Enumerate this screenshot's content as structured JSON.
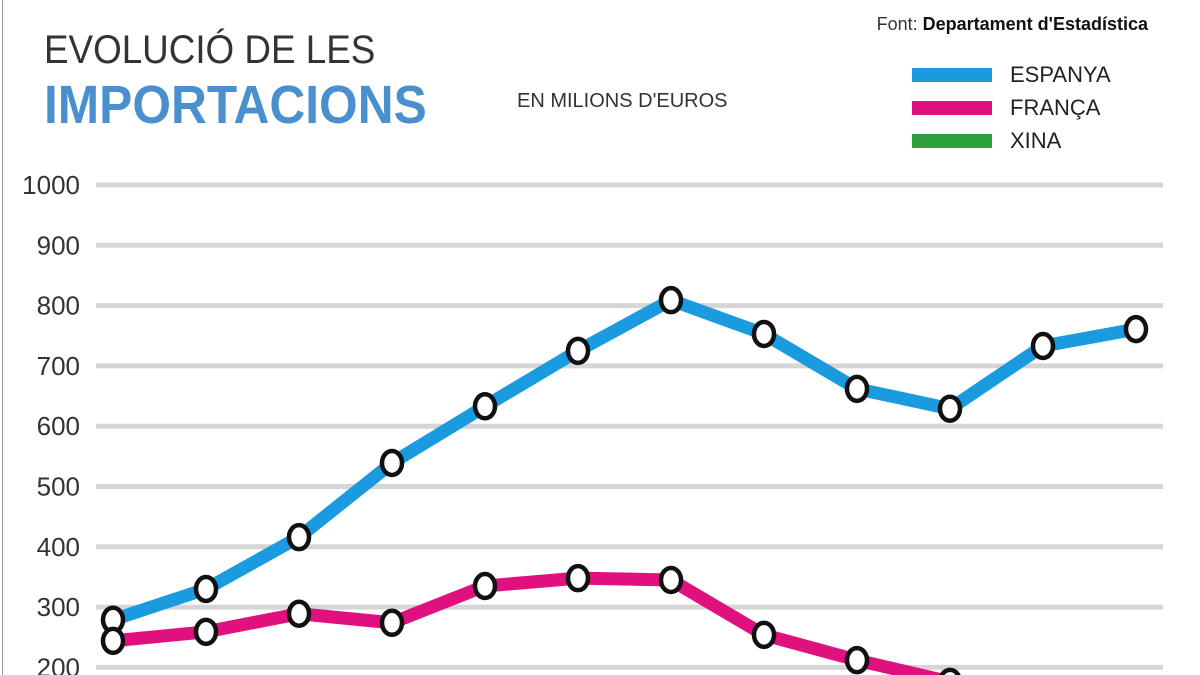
{
  "title_line1": "EVOLUCIÓ DE LES",
  "title_line2": "IMPORTACIONS",
  "unit": "EN MILIONS D'EUROS",
  "source_prefix": "Font:",
  "source_name": "Departament d'Estadística",
  "chart_data": {
    "type": "line",
    "title": "EVOLUCIÓ DE LES IMPORTACIONS",
    "subtitle": "EN MILIONS D'EUROS",
    "ylim": [
      200,
      1000
    ],
    "yticks": [
      1000,
      900,
      800,
      700,
      600,
      500,
      400,
      300,
      200
    ],
    "grid": true,
    "legend_position": "top-right",
    "series": [
      {
        "name": "ESPANYA",
        "color": "#1a9be0",
        "values": [
          279,
          330,
          416,
          539,
          633,
          725,
          809,
          753,
          662,
          629,
          733,
          761
        ]
      },
      {
        "name": "FRANÇA",
        "color": "#e0107f",
        "values": [
          244,
          259,
          289,
          274,
          335,
          348,
          345,
          254,
          212,
          176
        ]
      },
      {
        "name": "XINA",
        "color": "#2ca03c",
        "values": []
      }
    ]
  }
}
